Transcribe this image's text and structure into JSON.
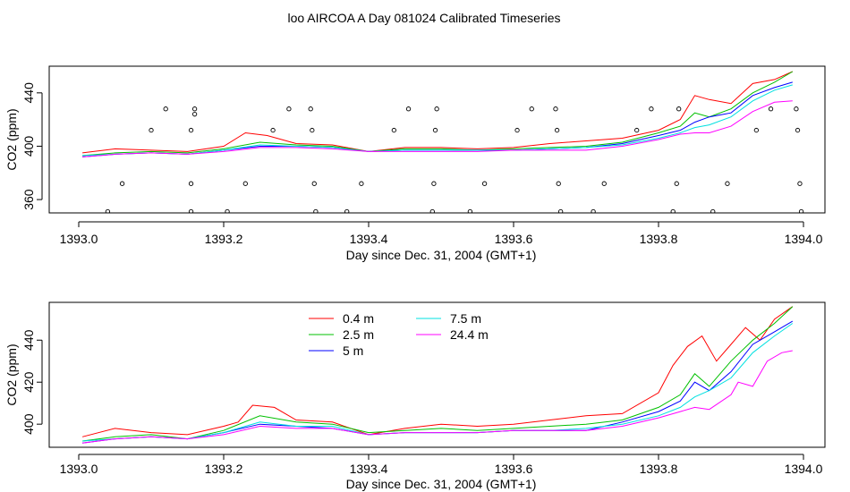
{
  "figure_title": "loo AIRCOA A  Day 081024  Calibrated Timeseries",
  "colors": {
    "series": [
      "#ff0000",
      "#00c000",
      "#0000ff",
      "#00e0e0",
      "#ff00ff"
    ],
    "points": "#000000",
    "frame": "#000000"
  },
  "chart_data": [
    {
      "type": "line",
      "panel": "top",
      "xlabel": "Day since Dec. 31, 2004 (GMT+1)",
      "ylabel": "CO2 (ppm)",
      "xlim": [
        1393.0,
        1394.0
      ],
      "ylim": [
        350,
        460
      ],
      "xticks": [
        1393.0,
        1393.2,
        1393.4,
        1393.6,
        1393.8,
        1394.0
      ],
      "xtick_labels": [
        "1393.0",
        "1393.2",
        "1393.4",
        "1393.6",
        "1393.8",
        "1394.0"
      ],
      "yticks": [
        360,
        400,
        440
      ],
      "ytick_labels": [
        "360",
        "400",
        "440"
      ],
      "grid": false,
      "series": [
        {
          "color_index": 0,
          "x": [
            1393.005,
            1393.05,
            1393.1,
            1393.15,
            1393.2,
            1393.23,
            1393.26,
            1393.3,
            1393.35,
            1393.4,
            1393.45,
            1393.5,
            1393.55,
            1393.6,
            1393.65,
            1393.7,
            1393.75,
            1393.8,
            1393.83,
            1393.85,
            1393.87,
            1393.9,
            1393.93,
            1393.96,
            1393.985
          ],
          "y": [
            395,
            398,
            397,
            396,
            400,
            410,
            408,
            402,
            401,
            396,
            399,
            399,
            398,
            399,
            402,
            404,
            406,
            412,
            420,
            438,
            435,
            432,
            447,
            450,
            456
          ]
        },
        {
          "color_index": 1,
          "x": [
            1393.005,
            1393.05,
            1393.1,
            1393.15,
            1393.2,
            1393.25,
            1393.3,
            1393.35,
            1393.4,
            1393.45,
            1393.5,
            1393.55,
            1393.6,
            1393.65,
            1393.7,
            1393.75,
            1393.8,
            1393.83,
            1393.85,
            1393.87,
            1393.9,
            1393.93,
            1393.96,
            1393.985
          ],
          "y": [
            393,
            395,
            396,
            395,
            398,
            403,
            401,
            400,
            396,
            398,
            398,
            397,
            398,
            399,
            400,
            403,
            410,
            415,
            425,
            422,
            428,
            440,
            448,
            456
          ]
        },
        {
          "color_index": 2,
          "x": [
            1393.005,
            1393.05,
            1393.1,
            1393.15,
            1393.2,
            1393.25,
            1393.3,
            1393.35,
            1393.4,
            1393.45,
            1393.5,
            1393.55,
            1393.6,
            1393.65,
            1393.7,
            1393.75,
            1393.8,
            1393.83,
            1393.85,
            1393.87,
            1393.9,
            1393.93,
            1393.96,
            1393.985
          ],
          "y": [
            392,
            394,
            395,
            394,
            397,
            400,
            400,
            399,
            396,
            397,
            397,
            397,
            397,
            398,
            399,
            402,
            408,
            412,
            418,
            422,
            425,
            438,
            444,
            448
          ]
        },
        {
          "color_index": 3,
          "x": [
            1393.005,
            1393.05,
            1393.1,
            1393.15,
            1393.2,
            1393.25,
            1393.3,
            1393.35,
            1393.4,
            1393.45,
            1393.5,
            1393.55,
            1393.6,
            1393.65,
            1393.7,
            1393.75,
            1393.8,
            1393.83,
            1393.85,
            1393.87,
            1393.9,
            1393.93,
            1393.96,
            1393.985
          ],
          "y": [
            393,
            394,
            395,
            394,
            397,
            401,
            400,
            399,
            396,
            397,
            397,
            397,
            397,
            398,
            399,
            401,
            406,
            410,
            414,
            416,
            422,
            434,
            442,
            446
          ]
        },
        {
          "color_index": 4,
          "x": [
            1393.005,
            1393.05,
            1393.1,
            1393.15,
            1393.2,
            1393.25,
            1393.3,
            1393.35,
            1393.4,
            1393.45,
            1393.5,
            1393.55,
            1393.6,
            1393.65,
            1393.7,
            1393.75,
            1393.8,
            1393.83,
            1393.85,
            1393.87,
            1393.9,
            1393.93,
            1393.96,
            1393.985
          ],
          "y": [
            392,
            394,
            395,
            394,
            396,
            399,
            399,
            398,
            396,
            396,
            396,
            396,
            397,
            397,
            397,
            400,
            405,
            409,
            410,
            410,
            415,
            426,
            433,
            434
          ]
        }
      ],
      "markers": {
        "x": [
          1393.04,
          1393.06,
          1393.1,
          1393.12,
          1393.155,
          1393.155,
          1393.155,
          1393.16,
          1393.16,
          1393.205,
          1393.23,
          1393.268,
          1393.29,
          1393.32,
          1393.322,
          1393.325,
          1393.327,
          1393.37,
          1393.39,
          1393.435,
          1393.455,
          1393.488,
          1393.49,
          1393.492,
          1393.494,
          1393.54,
          1393.56,
          1393.605,
          1393.625,
          1393.658,
          1393.66,
          1393.662,
          1393.665,
          1393.71,
          1393.725,
          1393.77,
          1393.79,
          1393.82,
          1393.825,
          1393.828,
          1393.875,
          1393.895,
          1393.935,
          1393.955,
          1393.99,
          1393.992,
          1393.995,
          1393.997
        ],
        "y": [
          351,
          372,
          412,
          428,
          351,
          372,
          412,
          428,
          424,
          351,
          372,
          412,
          428,
          428,
          412,
          372,
          351,
          351,
          372,
          412,
          428,
          351,
          372,
          412,
          428,
          351,
          372,
          412,
          428,
          428,
          412,
          372,
          351,
          351,
          372,
          412,
          428,
          351,
          372,
          428,
          351,
          372,
          412,
          428,
          428,
          412,
          372,
          351
        ]
      }
    },
    {
      "type": "line",
      "panel": "bottom",
      "xlabel": "Day since Dec. 31, 2004 (GMT+1)",
      "ylabel": "CO2 (ppm)",
      "xlim": [
        1393.0,
        1394.0
      ],
      "ylim": [
        389,
        458
      ],
      "xticks": [
        1393.0,
        1393.2,
        1393.4,
        1393.6,
        1393.8,
        1394.0
      ],
      "xtick_labels": [
        "1393.0",
        "1393.2",
        "1393.4",
        "1393.6",
        "1393.8",
        "1394.0"
      ],
      "yticks": [
        400,
        420,
        440
      ],
      "ytick_labels": [
        "400",
        "420",
        "440"
      ],
      "grid": false,
      "legend_position": "top-left",
      "series": [
        {
          "name": "0.4 m",
          "color_index": 0,
          "x": [
            1393.005,
            1393.05,
            1393.1,
            1393.15,
            1393.2,
            1393.22,
            1393.24,
            1393.27,
            1393.3,
            1393.35,
            1393.4,
            1393.45,
            1393.5,
            1393.55,
            1393.6,
            1393.65,
            1393.7,
            1393.75,
            1393.8,
            1393.82,
            1393.84,
            1393.86,
            1393.88,
            1393.9,
            1393.92,
            1393.94,
            1393.96,
            1393.985
          ],
          "y": [
            394,
            398,
            396,
            395,
            399,
            401,
            409,
            408,
            402,
            401,
            395,
            398,
            400,
            399,
            400,
            402,
            404,
            405,
            415,
            428,
            437,
            442,
            430,
            438,
            446,
            440,
            450,
            456
          ]
        },
        {
          "name": "2.5 m",
          "color_index": 1,
          "x": [
            1393.005,
            1393.05,
            1393.1,
            1393.15,
            1393.2,
            1393.25,
            1393.3,
            1393.35,
            1393.4,
            1393.45,
            1393.5,
            1393.55,
            1393.6,
            1393.65,
            1393.7,
            1393.75,
            1393.8,
            1393.83,
            1393.85,
            1393.87,
            1393.9,
            1393.93,
            1393.96,
            1393.985
          ],
          "y": [
            392,
            394,
            395,
            393,
            397,
            404,
            401,
            400,
            396,
            397,
            398,
            397,
            398,
            399,
            400,
            402,
            408,
            414,
            424,
            418,
            430,
            440,
            448,
            456
          ]
        },
        {
          "name": "5 m",
          "color_index": 2,
          "x": [
            1393.005,
            1393.05,
            1393.1,
            1393.15,
            1393.2,
            1393.25,
            1393.3,
            1393.35,
            1393.4,
            1393.45,
            1393.5,
            1393.55,
            1393.6,
            1393.65,
            1393.7,
            1393.75,
            1393.8,
            1393.83,
            1393.85,
            1393.87,
            1393.9,
            1393.93,
            1393.96,
            1393.985
          ],
          "y": [
            391,
            393,
            394,
            393,
            396,
            400,
            399,
            398,
            395,
            396,
            396,
            396,
            397,
            397,
            397,
            401,
            406,
            411,
            420,
            416,
            425,
            438,
            444,
            449
          ]
        },
        {
          "name": "7.5 m",
          "color_index": 3,
          "x": [
            1393.005,
            1393.05,
            1393.1,
            1393.15,
            1393.2,
            1393.25,
            1393.3,
            1393.35,
            1393.4,
            1393.45,
            1393.5,
            1393.55,
            1393.6,
            1393.65,
            1393.7,
            1393.75,
            1393.8,
            1393.83,
            1393.85,
            1393.87,
            1393.9,
            1393.93,
            1393.96,
            1393.985
          ],
          "y": [
            392,
            393,
            394,
            393,
            396,
            401,
            399,
            399,
            395,
            396,
            396,
            396,
            397,
            397,
            398,
            400,
            404,
            408,
            413,
            416,
            422,
            434,
            442,
            448
          ]
        },
        {
          "name": "24.4 m",
          "color_index": 4,
          "x": [
            1393.005,
            1393.05,
            1393.1,
            1393.15,
            1393.2,
            1393.25,
            1393.3,
            1393.35,
            1393.4,
            1393.45,
            1393.5,
            1393.55,
            1393.6,
            1393.65,
            1393.7,
            1393.75,
            1393.8,
            1393.83,
            1393.85,
            1393.87,
            1393.9,
            1393.91,
            1393.93,
            1393.95,
            1393.97,
            1393.985
          ],
          "y": [
            391,
            393,
            394,
            393,
            395,
            399,
            398,
            398,
            395,
            396,
            396,
            396,
            397,
            397,
            397,
            399,
            403,
            406,
            408,
            407,
            414,
            420,
            418,
            430,
            434,
            435
          ]
        }
      ]
    }
  ]
}
